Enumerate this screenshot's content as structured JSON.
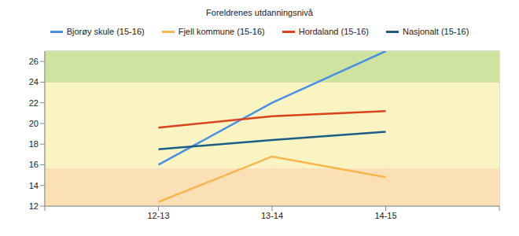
{
  "chart_data": {
    "type": "line",
    "title": "Foreldrenes utdanningsnivå",
    "categories": [
      null,
      "12-13",
      "13-14",
      "14-15",
      null
    ],
    "series": [
      {
        "name": "Bjorøy skule (15-16)",
        "color": "#4a8fe3",
        "values": [
          null,
          16,
          22,
          27,
          null
        ]
      },
      {
        "name": "Fjell kommune (15-16)",
        "color": "#f8b54c",
        "values": [
          null,
          12.4,
          16.8,
          14.8,
          null
        ]
      },
      {
        "name": "Hordaland (15-16)",
        "color": "#d8441b",
        "values": [
          null,
          19.6,
          20.7,
          21.2,
          null
        ]
      },
      {
        "name": "Nasjonalt (15-16)",
        "color": "#1c5d85",
        "values": [
          null,
          17.5,
          18.4,
          19.2,
          null
        ]
      }
    ],
    "ylim": [
      12,
      27
    ],
    "yticks": [
      12,
      14,
      16,
      18,
      20,
      22,
      24,
      26
    ],
    "grid": true,
    "legend": "top",
    "bands": [
      {
        "from": 12,
        "to": 15.7,
        "color": "#fbe0b6"
      },
      {
        "from": 15.7,
        "to": 24,
        "color": "#faf4c2"
      },
      {
        "from": 24,
        "to": 27,
        "color": "#cfe3a1"
      }
    ]
  }
}
